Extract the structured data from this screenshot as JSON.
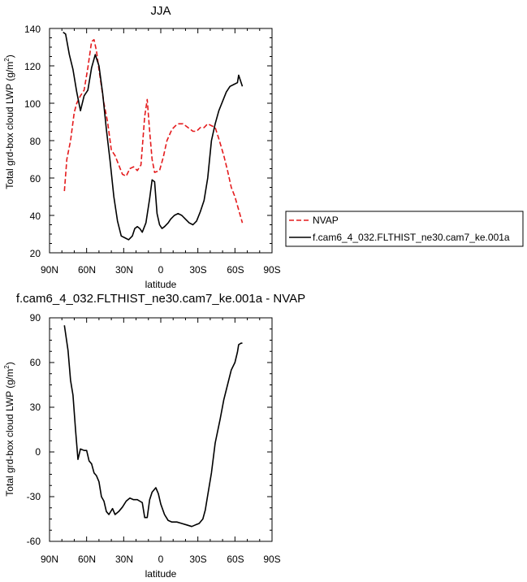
{
  "chart_data": [
    {
      "type": "line",
      "title": "JJA",
      "xlabel": "latitude",
      "ylabel": "Total grd-box cloud LWP (g/m",
      "ylabel_sup": "2",
      "ylabel_close": ")",
      "xlim": [
        90,
        -90
      ],
      "ylim": [
        20,
        140
      ],
      "xticks": [
        90,
        60,
        30,
        0,
        -30,
        -60,
        -90
      ],
      "xtick_labels": [
        "90N",
        "60N",
        "30N",
        "0",
        "30S",
        "60S",
        "90S"
      ],
      "yticks": [
        20,
        40,
        60,
        80,
        100,
        120,
        140
      ],
      "ytick_labels": [
        "20",
        "40",
        "60",
        "80",
        "100",
        "120",
        "140"
      ],
      "grid": false,
      "legend": "right",
      "series": [
        {
          "name": "NVAP",
          "color": "#e41a1c",
          "dash": "dashed",
          "points": [
            [
              78,
              53
            ],
            [
              76,
              70
            ],
            [
              73,
              80
            ],
            [
              70,
              95
            ],
            [
              68,
              100
            ],
            [
              65,
              104
            ],
            [
              62,
              107
            ],
            [
              59,
              119
            ],
            [
              56,
              133
            ],
            [
              54,
              134
            ],
            [
              52,
              128
            ],
            [
              50,
              118
            ],
            [
              46,
              100
            ],
            [
              43,
              90
            ],
            [
              40,
              75
            ],
            [
              37,
              72
            ],
            [
              34,
              67
            ],
            [
              31,
              62
            ],
            [
              28,
              61
            ],
            [
              25,
              65
            ],
            [
              22,
              66
            ],
            [
              19,
              64
            ],
            [
              16,
              67
            ],
            [
              13,
              93
            ],
            [
              11,
              102
            ],
            [
              9,
              85
            ],
            [
              7,
              70
            ],
            [
              5,
              63
            ],
            [
              1,
              64
            ],
            [
              -2,
              71
            ],
            [
              -5,
              80
            ],
            [
              -9,
              86
            ],
            [
              -12,
              88
            ],
            [
              -14,
              89
            ],
            [
              -18,
              89
            ],
            [
              -22,
              87
            ],
            [
              -26,
              85
            ],
            [
              -29,
              85
            ],
            [
              -32,
              87
            ],
            [
              -35,
              87
            ],
            [
              -38,
              89
            ],
            [
              -41,
              88
            ],
            [
              -44,
              87
            ],
            [
              -47,
              81
            ],
            [
              -51,
              72
            ],
            [
              -54,
              64
            ],
            [
              -57,
              55
            ],
            [
              -60,
              50
            ],
            [
              -63,
              43
            ],
            [
              -66,
              36
            ]
          ]
        },
        {
          "name": "f.cam6_4_032.FLTHIST_ne30.cam7_ke.001a",
          "color": "#000000",
          "dash": "solid",
          "points": [
            [
              79,
              138
            ],
            [
              77,
              137
            ],
            [
              74,
              126
            ],
            [
              71,
              118
            ],
            [
              68,
              106
            ],
            [
              65,
              96
            ],
            [
              62,
              104
            ],
            [
              59,
              107
            ],
            [
              56,
              119
            ],
            [
              53,
              126
            ],
            [
              50,
              120
            ],
            [
              47,
              105
            ],
            [
              44,
              86
            ],
            [
              41,
              69
            ],
            [
              38,
              50
            ],
            [
              35,
              37
            ],
            [
              32,
              29
            ],
            [
              29,
              28
            ],
            [
              26,
              27
            ],
            [
              23,
              29
            ],
            [
              21,
              33
            ],
            [
              19,
              34
            ],
            [
              17,
              33
            ],
            [
              15,
              31
            ],
            [
              12,
              36
            ],
            [
              9,
              49
            ],
            [
              7,
              59
            ],
            [
              5,
              58
            ],
            [
              3,
              41
            ],
            [
              1,
              35
            ],
            [
              -1,
              33
            ],
            [
              -3,
              34
            ],
            [
              -6,
              36
            ],
            [
              -8,
              38
            ],
            [
              -11,
              40
            ],
            [
              -14,
              41
            ],
            [
              -17,
              40
            ],
            [
              -20,
              38
            ],
            [
              -23,
              36
            ],
            [
              -26,
              35
            ],
            [
              -29,
              37
            ],
            [
              -32,
              42
            ],
            [
              -35,
              48
            ],
            [
              -38,
              60
            ],
            [
              -41,
              80
            ],
            [
              -44,
              89
            ],
            [
              -47,
              96
            ],
            [
              -50,
              101
            ],
            [
              -53,
              106
            ],
            [
              -56,
              109
            ],
            [
              -59,
              110
            ],
            [
              -62,
              111
            ],
            [
              -63,
              115
            ],
            [
              -66,
              109
            ]
          ]
        }
      ]
    },
    {
      "type": "line",
      "title": "f.cam6_4_032.FLTHIST_ne30.cam7_ke.001a - NVAP",
      "xlabel": "latitude",
      "ylabel": "Total grd-box cloud LWP (g/m",
      "ylabel_sup": "2",
      "ylabel_close": ")",
      "xlim": [
        90,
        -90
      ],
      "ylim": [
        -60,
        90
      ],
      "xticks": [
        90,
        60,
        30,
        0,
        -30,
        -60,
        -90
      ],
      "xtick_labels": [
        "90N",
        "60N",
        "30N",
        "0",
        "30S",
        "60S",
        "90S"
      ],
      "yticks": [
        -60,
        -30,
        0,
        30,
        60,
        90
      ],
      "ytick_labels": [
        "-60",
        "-30",
        "0",
        "30",
        "60",
        "90"
      ],
      "grid": false,
      "series": [
        {
          "color": "#000000",
          "dash": "solid",
          "points": [
            [
              78,
              85
            ],
            [
              75,
              68
            ],
            [
              73,
              48
            ],
            [
              71,
              38
            ],
            [
              69,
              15
            ],
            [
              67,
              -5
            ],
            [
              65,
              2
            ],
            [
              62,
              1
            ],
            [
              60,
              1
            ],
            [
              58,
              -6
            ],
            [
              56,
              -8
            ],
            [
              54,
              -14
            ],
            [
              52,
              -16
            ],
            [
              50,
              -20
            ],
            [
              48,
              -30
            ],
            [
              46,
              -33
            ],
            [
              44,
              -40
            ],
            [
              42,
              -42
            ],
            [
              39,
              -38
            ],
            [
              37,
              -42
            ],
            [
              34,
              -40
            ],
            [
              31,
              -37
            ],
            [
              28,
              -33
            ],
            [
              25,
              -31
            ],
            [
              22,
              -32
            ],
            [
              19,
              -32
            ],
            [
              17,
              -33
            ],
            [
              15,
              -34
            ],
            [
              13,
              -44
            ],
            [
              11,
              -44
            ],
            [
              9,
              -32
            ],
            [
              7,
              -27
            ],
            [
              4,
              -24
            ],
            [
              2,
              -28
            ],
            [
              0,
              -35
            ],
            [
              -3,
              -42
            ],
            [
              -6,
              -46
            ],
            [
              -9,
              -47
            ],
            [
              -13,
              -47
            ],
            [
              -17,
              -48
            ],
            [
              -21,
              -49
            ],
            [
              -25,
              -50
            ],
            [
              -28,
              -49
            ],
            [
              -31,
              -48
            ],
            [
              -34,
              -45
            ],
            [
              -36,
              -39
            ],
            [
              -38,
              -29
            ],
            [
              -41,
              -14
            ],
            [
              -44,
              6
            ],
            [
              -48,
              22
            ],
            [
              -51,
              35
            ],
            [
              -54,
              45
            ],
            [
              -57,
              55
            ],
            [
              -60,
              60
            ],
            [
              -62,
              67
            ],
            [
              -63,
              72
            ],
            [
              -65,
              73
            ],
            [
              -66,
              73
            ]
          ]
        }
      ]
    }
  ]
}
